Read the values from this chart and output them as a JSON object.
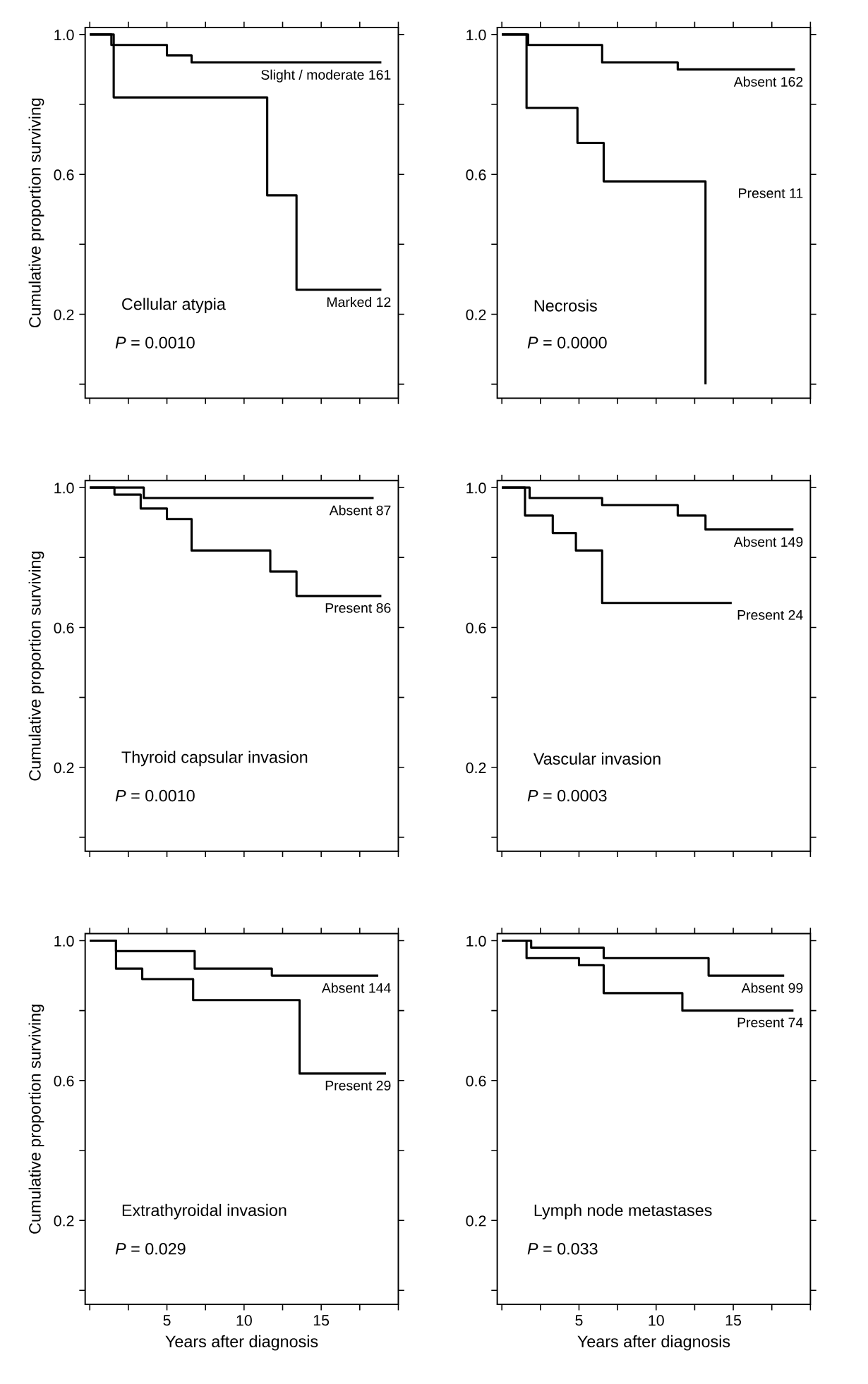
{
  "chart_data": [
    {
      "type": "step",
      "title": "Cellular atypia",
      "ylabel": "Cumulative proportion surviving",
      "annotations": [
        "*P* = 0.0010"
      ],
      "xlim": [
        -0.3,
        20
      ],
      "ylim": [
        -0.04,
        1.02
      ],
      "tick_labels": "y",
      "xticks": [
        {
          "value": 0,
          "label": null
        },
        {
          "value": 2.5,
          "label": null
        },
        5,
        {
          "value": 7.5,
          "label": null
        },
        10,
        {
          "value": 12.5,
          "label": null
        },
        15,
        {
          "value": 17.5,
          "label": null
        },
        {
          "value": 20,
          "label": null
        }
      ],
      "yticks": [
        {
          "value": 0,
          "label": null
        },
        {
          "value": 0.2,
          "label": "0.2"
        },
        {
          "value": 0.4,
          "label": null
        },
        {
          "value": 0.6,
          "label": "0.6"
        },
        {
          "value": 0.8,
          "label": null
        },
        {
          "value": 1,
          "label": "1.0"
        }
      ],
      "series": [
        {
          "name": "Slight / moderate 161",
          "color": "#000000",
          "x": [
            0,
            1.4,
            5.0,
            6.6,
            18.9
          ],
          "values": [
            1.0,
            0.97,
            0.94,
            0.92,
            0.92
          ]
        },
        {
          "name": "Marked 12",
          "color": "#000000",
          "x": [
            0,
            1.55,
            11.5,
            13.4,
            18.9
          ],
          "values": [
            1.0,
            0.82,
            0.54,
            0.27,
            0.27
          ]
        }
      ]
    },
    {
      "type": "step",
      "title": "Necrosis",
      "annotations": [
        "*P* = 0.0000"
      ],
      "xlim": [
        -0.3,
        20
      ],
      "ylim": [
        -0.04,
        1.02
      ],
      "tick_labels": "y",
      "xticks": [
        {
          "value": 0,
          "label": null
        },
        {
          "value": 2.5,
          "label": null
        },
        5,
        {
          "value": 7.5,
          "label": null
        },
        10,
        {
          "value": 12.5,
          "label": null
        },
        15,
        {
          "value": 17.5,
          "label": null
        },
        {
          "value": 20,
          "label": null
        }
      ],
      "yticks": [
        {
          "value": 0,
          "label": null
        },
        {
          "value": 0.2,
          "label": "0.2"
        },
        {
          "value": 0.4,
          "label": null
        },
        {
          "value": 0.6,
          "label": "0.6"
        },
        {
          "value": 0.8,
          "label": null
        },
        {
          "value": 1,
          "label": "1.0"
        }
      ],
      "series": [
        {
          "name": "Absent 162",
          "color": "#000000",
          "x": [
            0,
            1.7,
            6.5,
            11.4,
            19.0
          ],
          "values": [
            1.0,
            0.97,
            0.92,
            0.9,
            0.9
          ]
        },
        {
          "name": "Present 11",
          "color": "#000000",
          "x": [
            0,
            1.6,
            4.9,
            6.6,
            13.2
          ],
          "values": [
            1.0,
            0.79,
            0.69,
            0.58,
            0.0
          ]
        }
      ]
    },
    {
      "type": "step",
      "title": "Thyroid capsular invasion",
      "ylabel": "Cumulative proportion surviving",
      "annotations": [
        "*P* = 0.0010"
      ],
      "xlim": [
        -0.3,
        20
      ],
      "ylim": [
        -0.04,
        1.02
      ],
      "tick_labels": "y",
      "xticks": [
        {
          "value": 0,
          "label": null
        },
        {
          "value": 2.5,
          "label": null
        },
        5,
        {
          "value": 7.5,
          "label": null
        },
        10,
        {
          "value": 12.5,
          "label": null
        },
        15,
        {
          "value": 17.5,
          "label": null
        },
        {
          "value": 20,
          "label": null
        }
      ],
      "yticks": [
        {
          "value": 0,
          "label": null
        },
        {
          "value": 0.2,
          "label": "0.2"
        },
        {
          "value": 0.4,
          "label": null
        },
        {
          "value": 0.6,
          "label": "0.6"
        },
        {
          "value": 0.8,
          "label": null
        },
        {
          "value": 1,
          "label": "1.0"
        }
      ],
      "series": [
        {
          "name": "Absent 87",
          "color": "#000000",
          "x": [
            0,
            3.5,
            18.4
          ],
          "values": [
            1.0,
            0.97,
            0.97
          ]
        },
        {
          "name": "Present 86",
          "color": "#000000",
          "x": [
            0,
            1.6,
            3.3,
            5.0,
            6.6,
            11.7,
            13.4,
            18.9
          ],
          "values": [
            1.0,
            0.98,
            0.94,
            0.91,
            0.82,
            0.76,
            0.69,
            0.69
          ]
        }
      ]
    },
    {
      "type": "step",
      "title": "Vascular invasion",
      "annotations": [
        "*P* = 0.0003"
      ],
      "xlim": [
        -0.3,
        20
      ],
      "ylim": [
        -0.04,
        1.02
      ],
      "tick_labels": "y",
      "xticks": [
        {
          "value": 0,
          "label": null
        },
        {
          "value": 2.5,
          "label": null
        },
        5,
        {
          "value": 7.5,
          "label": null
        },
        10,
        {
          "value": 12.5,
          "label": null
        },
        15,
        {
          "value": 17.5,
          "label": null
        },
        {
          "value": 20,
          "label": null
        }
      ],
      "yticks": [
        {
          "value": 0,
          "label": null
        },
        {
          "value": 0.2,
          "label": "0.2"
        },
        {
          "value": 0.4,
          "label": null
        },
        {
          "value": 0.6,
          "label": "0.6"
        },
        {
          "value": 0.8,
          "label": null
        },
        {
          "value": 1,
          "label": "1.0"
        }
      ],
      "series": [
        {
          "name": "Absent 149",
          "color": "#000000",
          "x": [
            0,
            1.8,
            6.5,
            11.4,
            13.2,
            18.9
          ],
          "values": [
            1.0,
            0.97,
            0.95,
            0.92,
            0.88,
            0.88
          ]
        },
        {
          "name": "Present 24",
          "color": "#000000",
          "x": [
            0,
            1.5,
            3.3,
            4.8,
            6.5,
            14.9
          ],
          "values": [
            1.0,
            0.92,
            0.87,
            0.82,
            0.67,
            0.67
          ]
        }
      ]
    },
    {
      "type": "step",
      "title": "Extrathyroidal invasion",
      "xlabel": "Years after diagnosis",
      "ylabel": "Cumulative proportion surviving",
      "annotations": [
        "*P* = 0.029"
      ],
      "xlim": [
        -0.3,
        20
      ],
      "ylim": [
        -0.04,
        1.02
      ],
      "xticks": [
        {
          "value": 0,
          "label": null
        },
        {
          "value": 2.5,
          "label": null
        },
        5,
        {
          "value": 7.5,
          "label": null
        },
        10,
        {
          "value": 12.5,
          "label": null
        },
        15,
        {
          "value": 17.5,
          "label": null
        },
        {
          "value": 20,
          "label": null
        }
      ],
      "yticks": [
        {
          "value": 0,
          "label": null
        },
        {
          "value": 0.2,
          "label": "0.2"
        },
        {
          "value": 0.4,
          "label": null
        },
        {
          "value": 0.6,
          "label": "0.6"
        },
        {
          "value": 0.8,
          "label": null
        },
        {
          "value": 1,
          "label": "1.0"
        }
      ],
      "series": [
        {
          "name": "Absent 144",
          "color": "#000000",
          "x": [
            0,
            1.7,
            6.8,
            11.8,
            18.7
          ],
          "values": [
            1.0,
            0.97,
            0.92,
            0.9,
            0.9
          ]
        },
        {
          "name": "Present 29",
          "color": "#000000",
          "x": [
            0,
            1.7,
            3.4,
            6.7,
            13.6,
            19.2
          ],
          "values": [
            1.0,
            0.92,
            0.89,
            0.83,
            0.62,
            0.62
          ]
        }
      ]
    },
    {
      "type": "step",
      "title": "Lymph node metastases",
      "xlabel": "Years after diagnosis",
      "annotations": [
        "*P* = 0.033"
      ],
      "xlim": [
        -0.3,
        20
      ],
      "ylim": [
        -0.04,
        1.02
      ],
      "xticks": [
        {
          "value": 0,
          "label": null
        },
        {
          "value": 2.5,
          "label": null
        },
        5,
        {
          "value": 7.5,
          "label": null
        },
        10,
        {
          "value": 12.5,
          "label": null
        },
        15,
        {
          "value": 17.5,
          "label": null
        },
        {
          "value": 20,
          "label": null
        }
      ],
      "yticks": [
        {
          "value": 0,
          "label": null
        },
        {
          "value": 0.2,
          "label": "0.2"
        },
        {
          "value": 0.4,
          "label": null
        },
        {
          "value": 0.6,
          "label": "0.6"
        },
        {
          "value": 0.8,
          "label": null
        },
        {
          "value": 1,
          "label": "1.0"
        }
      ],
      "series": [
        {
          "name": "Absent 99",
          "color": "#000000",
          "x": [
            0,
            1.9,
            6.6,
            13.4,
            18.3
          ],
          "values": [
            1.0,
            0.98,
            0.95,
            0.9,
            0.9
          ]
        },
        {
          "name": "Present 74",
          "color": "#000000",
          "x": [
            0,
            1.6,
            5.0,
            6.6,
            11.7,
            18.9
          ],
          "values": [
            1.0,
            0.95,
            0.93,
            0.85,
            0.8,
            0.8
          ]
        }
      ]
    }
  ]
}
